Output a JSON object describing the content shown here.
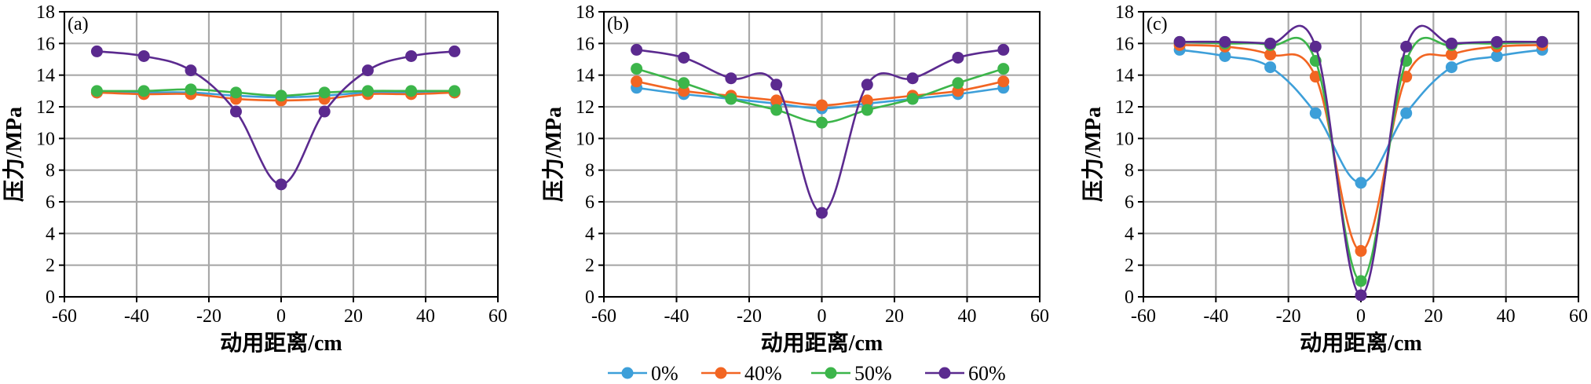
{
  "series_colors": {
    "0%": "#3d9fd9",
    "40%": "#f26522",
    "50%": "#3cb54a",
    "60%": "#5b2a8f"
  },
  "chart_data": [
    {
      "type": "line",
      "panel_label": "(a)",
      "xlabel": "动用距离/cm",
      "ylabel": "压力/MPa",
      "xlim": [
        -60,
        60
      ],
      "ylim": [
        0,
        18
      ],
      "xticks": [
        -60,
        -40,
        -20,
        0,
        20,
        40,
        60
      ],
      "yticks": [
        0,
        2,
        4,
        6,
        8,
        10,
        12,
        14,
        16,
        18
      ],
      "x": [
        -51,
        -38,
        -25,
        -12.5,
        0,
        12,
        24,
        36,
        48
      ],
      "grid": true,
      "series": [
        {
          "name": "0%",
          "values": [
            12.9,
            12.9,
            12.9,
            12.7,
            12.6,
            12.7,
            12.9,
            12.9,
            12.9
          ]
        },
        {
          "name": "40%",
          "values": [
            12.9,
            12.8,
            12.8,
            12.5,
            12.4,
            12.5,
            12.8,
            12.8,
            12.9
          ]
        },
        {
          "name": "50%",
          "values": [
            13.0,
            13.0,
            13.1,
            12.9,
            12.7,
            12.9,
            13.0,
            13.0,
            13.0
          ]
        },
        {
          "name": "60%",
          "values": [
            15.5,
            15.2,
            14.3,
            11.7,
            7.1,
            11.7,
            14.3,
            15.2,
            15.5
          ]
        }
      ]
    },
    {
      "type": "line",
      "panel_label": "(b)",
      "xlabel": "动用距离/cm",
      "ylabel": "压力/MPa",
      "xlim": [
        -60,
        60
      ],
      "ylim": [
        0,
        18
      ],
      "xticks": [
        -60,
        -40,
        -20,
        0,
        20,
        40,
        60
      ],
      "yticks": [
        0,
        2,
        4,
        6,
        8,
        10,
        12,
        14,
        16,
        18
      ],
      "x": [
        -51,
        -38,
        -25,
        -12.5,
        0,
        12.5,
        25,
        37.5,
        50
      ],
      "grid": true,
      "series": [
        {
          "name": "0%",
          "values": [
            13.2,
            12.8,
            12.5,
            12.2,
            11.9,
            12.2,
            12.5,
            12.8,
            13.2
          ]
        },
        {
          "name": "40%",
          "values": [
            13.6,
            13.0,
            12.7,
            12.4,
            12.1,
            12.4,
            12.7,
            13.0,
            13.6
          ]
        },
        {
          "name": "50%",
          "values": [
            14.4,
            13.5,
            12.5,
            11.8,
            11.0,
            11.8,
            12.5,
            13.5,
            14.4
          ]
        },
        {
          "name": "60%",
          "values": [
            15.6,
            15.1,
            13.8,
            13.4,
            5.3,
            13.4,
            13.8,
            15.1,
            15.6
          ]
        }
      ]
    },
    {
      "type": "line",
      "panel_label": "(c)",
      "xlabel": "动用距离/cm",
      "ylabel": "压力/MPa",
      "xlim": [
        -60,
        60
      ],
      "ylim": [
        0,
        18
      ],
      "xticks": [
        -60,
        -40,
        -20,
        0,
        20,
        40,
        60
      ],
      "yticks": [
        0,
        2,
        4,
        6,
        8,
        10,
        12,
        14,
        16,
        18
      ],
      "x": [
        -50,
        -37.5,
        -25,
        -12.5,
        0,
        12.5,
        25,
        37.5,
        50
      ],
      "grid": true,
      "series": [
        {
          "name": "0%",
          "values": [
            15.6,
            15.2,
            14.5,
            11.6,
            7.2,
            11.6,
            14.5,
            15.2,
            15.6
          ]
        },
        {
          "name": "40%",
          "values": [
            15.9,
            15.8,
            15.3,
            13.9,
            2.9,
            13.9,
            15.3,
            15.8,
            15.9
          ]
        },
        {
          "name": "50%",
          "values": [
            16.1,
            16.0,
            15.9,
            14.9,
            1.0,
            14.9,
            15.9,
            16.0,
            16.1
          ]
        },
        {
          "name": "60%",
          "values": [
            16.1,
            16.1,
            16.0,
            15.8,
            0.1,
            15.8,
            16.0,
            16.1,
            16.1
          ]
        }
      ]
    }
  ],
  "legend": {
    "placement": "bottom-center",
    "items": [
      "0%",
      "40%",
      "50%",
      "60%"
    ]
  }
}
